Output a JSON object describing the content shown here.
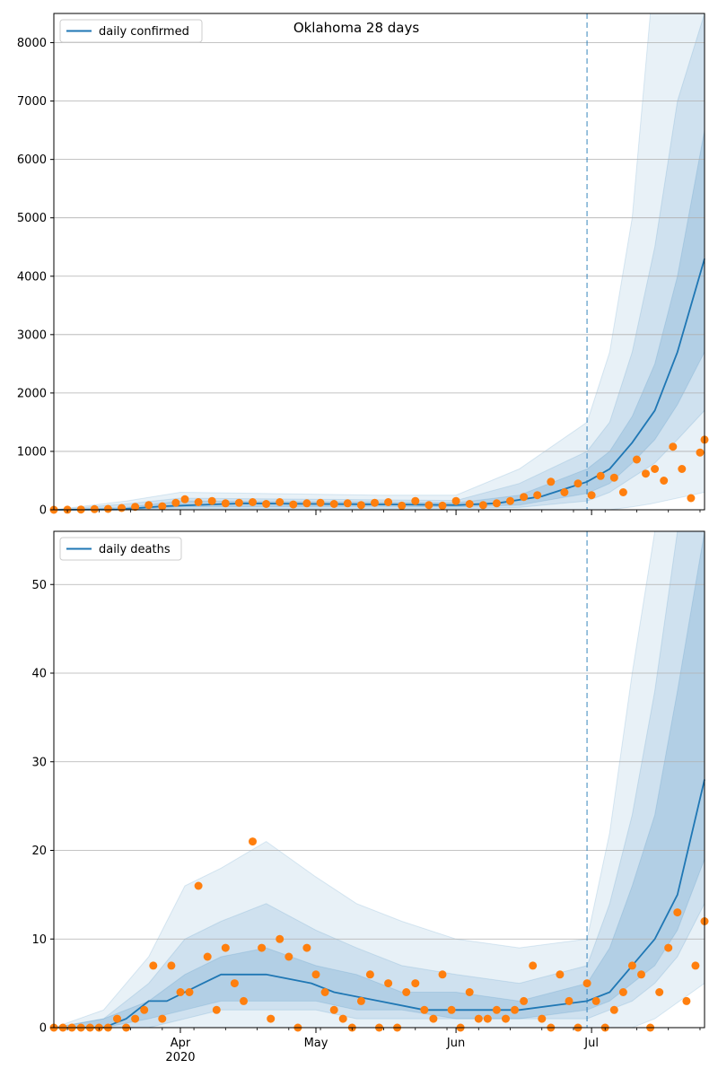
{
  "figure": {
    "title": "Oklahoma 28 days",
    "x_ticks": [
      "Apr",
      "May",
      "Jun",
      "Jul"
    ],
    "x_year_label": "2020"
  },
  "colors": {
    "line": "#1f77b4",
    "points": "#ff7f0e",
    "band": "#1f77b4",
    "grid": "#b0b0b0",
    "vline": "#1f77b4"
  },
  "chart_data": [
    {
      "type": "line",
      "legend": "daily confirmed",
      "legend_position": "top-left",
      "grid": "horizontal",
      "x_range": [
        "2020-03-04",
        "2020-07-26"
      ],
      "forecast_start": "2020-06-30",
      "ylim": [
        0,
        8500
      ],
      "yticks": [
        0,
        1000,
        2000,
        3000,
        4000,
        5000,
        6000,
        7000,
        8000
      ],
      "line": {
        "x": [
          "2020-03-04",
          "2020-03-18",
          "2020-03-28",
          "2020-04-15",
          "2020-05-01",
          "2020-05-20",
          "2020-06-01",
          "2020-06-10",
          "2020-06-20",
          "2020-06-30",
          "2020-07-05",
          "2020-07-10",
          "2020-07-15",
          "2020-07-20",
          "2020-07-26"
        ],
        "y": [
          0,
          5,
          60,
          110,
          100,
          90,
          80,
          110,
          230,
          480,
          700,
          1150,
          1700,
          2700,
          4300
        ]
      },
      "bands": [
        {
          "level": "outer",
          "x": [
            "2020-03-04",
            "2020-03-20",
            "2020-04-01",
            "2020-05-15",
            "2020-06-01",
            "2020-06-15",
            "2020-06-30",
            "2020-07-05",
            "2020-07-10",
            "2020-07-14",
            "2020-07-26"
          ],
          "low": [
            0,
            0,
            0,
            0,
            0,
            0,
            0,
            0,
            50,
            100,
            300
          ],
          "high": [
            0,
            150,
            300,
            250,
            250,
            700,
            1500,
            2700,
            5000,
            8500,
            8500
          ]
        },
        {
          "level": "middle",
          "x": [
            "2020-03-04",
            "2020-03-20",
            "2020-04-01",
            "2020-05-15",
            "2020-06-01",
            "2020-06-15",
            "2020-06-30",
            "2020-07-05",
            "2020-07-10",
            "2020-07-15",
            "2020-07-20",
            "2020-07-26"
          ],
          "low": [
            0,
            0,
            20,
            20,
            20,
            40,
            150,
            300,
            550,
            800,
            1200,
            1700
          ],
          "high": [
            0,
            100,
            200,
            170,
            160,
            450,
            1000,
            1500,
            2700,
            4500,
            7000,
            8500
          ]
        },
        {
          "level": "inner",
          "x": [
            "2020-03-04",
            "2020-03-20",
            "2020-04-01",
            "2020-05-15",
            "2020-06-01",
            "2020-06-15",
            "2020-06-30",
            "2020-07-05",
            "2020-07-10",
            "2020-07-15",
            "2020-07-20",
            "2020-07-26"
          ],
          "low": [
            0,
            0,
            50,
            60,
            50,
            80,
            280,
            450,
            800,
            1200,
            1800,
            2700
          ],
          "high": [
            0,
            40,
            150,
            130,
            120,
            250,
            700,
            1000,
            1600,
            2500,
            4000,
            6500
          ]
        }
      ],
      "points": {
        "x": [
          "2020-03-04",
          "2020-03-07",
          "2020-03-10",
          "2020-03-13",
          "2020-03-16",
          "2020-03-19",
          "2020-03-22",
          "2020-03-25",
          "2020-03-28",
          "2020-03-31",
          "2020-04-02",
          "2020-04-05",
          "2020-04-08",
          "2020-04-11",
          "2020-04-14",
          "2020-04-17",
          "2020-04-20",
          "2020-04-23",
          "2020-04-26",
          "2020-04-29",
          "2020-05-02",
          "2020-05-05",
          "2020-05-08",
          "2020-05-11",
          "2020-05-14",
          "2020-05-17",
          "2020-05-20",
          "2020-05-23",
          "2020-05-26",
          "2020-05-29",
          "2020-06-01",
          "2020-06-04",
          "2020-06-07",
          "2020-06-10",
          "2020-06-13",
          "2020-06-16",
          "2020-06-19",
          "2020-06-22",
          "2020-06-25",
          "2020-06-28",
          "2020-07-01",
          "2020-07-03",
          "2020-07-06",
          "2020-07-08",
          "2020-07-11",
          "2020-07-13",
          "2020-07-15",
          "2020-07-17",
          "2020-07-19",
          "2020-07-21",
          "2020-07-23",
          "2020-07-25",
          "2020-07-26"
        ],
        "y": [
          0,
          2,
          5,
          10,
          15,
          30,
          50,
          80,
          60,
          120,
          180,
          130,
          150,
          110,
          120,
          130,
          100,
          130,
          90,
          110,
          120,
          100,
          110,
          80,
          120,
          130,
          70,
          150,
          80,
          70,
          150,
          100,
          80,
          110,
          150,
          220,
          250,
          480,
          300,
          450,
          250,
          580,
          550,
          300,
          860,
          620,
          700,
          500,
          1080,
          700,
          200,
          980,
          1200
        ]
      }
    },
    {
      "type": "line",
      "legend": "daily deaths",
      "legend_position": "top-left",
      "grid": "horizontal",
      "x_range": [
        "2020-03-04",
        "2020-07-26"
      ],
      "forecast_start": "2020-06-30",
      "ylim": [
        0,
        56
      ],
      "yticks": [
        0,
        10,
        20,
        30,
        40,
        50
      ],
      "line": {
        "x": [
          "2020-03-04",
          "2020-03-15",
          "2020-03-20",
          "2020-03-25",
          "2020-03-29",
          "2020-04-02",
          "2020-04-06",
          "2020-04-10",
          "2020-04-20",
          "2020-04-30",
          "2020-05-05",
          "2020-05-15",
          "2020-05-25",
          "2020-06-01",
          "2020-06-15",
          "2020-06-30",
          "2020-07-05",
          "2020-07-10",
          "2020-07-15",
          "2020-07-20",
          "2020-07-26"
        ],
        "y": [
          0,
          0,
          1,
          3,
          3,
          4,
          5,
          6,
          6,
          5,
          4,
          3,
          2,
          2,
          2,
          3,
          4,
          7,
          10,
          15,
          28
        ]
      },
      "bands": [
        {
          "level": "outer",
          "x": [
            "2020-03-04",
            "2020-03-15",
            "2020-03-25",
            "2020-04-02",
            "2020-04-10",
            "2020-04-20",
            "2020-05-01",
            "2020-05-10",
            "2020-05-20",
            "2020-06-01",
            "2020-06-15",
            "2020-06-30",
            "2020-07-05",
            "2020-07-10",
            "2020-07-15",
            "2020-07-26"
          ],
          "low": [
            0,
            0,
            0,
            0,
            0,
            0,
            0,
            0,
            0,
            0,
            0,
            0,
            0,
            0,
            1,
            5
          ],
          "high": [
            0,
            2,
            8,
            16,
            18,
            21,
            17,
            14,
            12,
            10,
            9,
            10,
            22,
            40,
            56,
            56
          ]
        },
        {
          "level": "middle",
          "x": [
            "2020-03-04",
            "2020-03-15",
            "2020-03-25",
            "2020-04-02",
            "2020-04-10",
            "2020-04-20",
            "2020-05-01",
            "2020-05-10",
            "2020-05-20",
            "2020-06-01",
            "2020-06-15",
            "2020-06-30",
            "2020-07-05",
            "2020-07-10",
            "2020-07-15",
            "2020-07-20",
            "2020-07-26"
          ],
          "low": [
            0,
            0,
            0,
            1,
            2,
            2,
            2,
            1,
            1,
            1,
            1,
            1,
            2,
            3,
            5,
            8,
            14
          ],
          "high": [
            0,
            1,
            5,
            10,
            12,
            14,
            11,
            9,
            7,
            6,
            5,
            7,
            14,
            24,
            38,
            56,
            56
          ]
        },
        {
          "level": "inner",
          "x": [
            "2020-03-04",
            "2020-03-15",
            "2020-03-25",
            "2020-04-02",
            "2020-04-10",
            "2020-04-20",
            "2020-05-01",
            "2020-05-10",
            "2020-05-20",
            "2020-06-01",
            "2020-06-15",
            "2020-06-30",
            "2020-07-05",
            "2020-07-10",
            "2020-07-15",
            "2020-07-20",
            "2020-07-26"
          ],
          "low": [
            0,
            0,
            1,
            2,
            3,
            3,
            3,
            2,
            2,
            1,
            1,
            2,
            3,
            5,
            7,
            11,
            19
          ],
          "high": [
            0,
            1,
            3,
            6,
            8,
            9,
            7,
            6,
            4,
            4,
            3,
            5,
            9,
            16,
            24,
            38,
            56
          ]
        }
      ],
      "points": {
        "x": [
          "2020-03-04",
          "2020-03-06",
          "2020-03-08",
          "2020-03-10",
          "2020-03-12",
          "2020-03-14",
          "2020-03-16",
          "2020-03-18",
          "2020-03-20",
          "2020-03-22",
          "2020-03-24",
          "2020-03-26",
          "2020-03-28",
          "2020-03-30",
          "2020-04-01",
          "2020-04-03",
          "2020-04-05",
          "2020-04-07",
          "2020-04-09",
          "2020-04-11",
          "2020-04-13",
          "2020-04-15",
          "2020-04-17",
          "2020-04-19",
          "2020-04-21",
          "2020-04-23",
          "2020-04-25",
          "2020-04-27",
          "2020-04-29",
          "2020-05-01",
          "2020-05-03",
          "2020-05-05",
          "2020-05-07",
          "2020-05-09",
          "2020-05-11",
          "2020-05-13",
          "2020-05-15",
          "2020-05-17",
          "2020-05-19",
          "2020-05-21",
          "2020-05-23",
          "2020-05-25",
          "2020-05-27",
          "2020-05-29",
          "2020-05-31",
          "2020-06-02",
          "2020-06-04",
          "2020-06-06",
          "2020-06-08",
          "2020-06-10",
          "2020-06-12",
          "2020-06-14",
          "2020-06-16",
          "2020-06-18",
          "2020-06-20",
          "2020-06-22",
          "2020-06-24",
          "2020-06-26",
          "2020-06-28",
          "2020-06-30",
          "2020-07-02",
          "2020-07-04",
          "2020-07-06",
          "2020-07-08",
          "2020-07-10",
          "2020-07-12",
          "2020-07-14",
          "2020-07-16",
          "2020-07-18",
          "2020-07-20",
          "2020-07-22",
          "2020-07-24",
          "2020-07-26"
        ],
        "y": [
          0,
          0,
          0,
          0,
          0,
          0,
          0,
          1,
          0,
          1,
          2,
          7,
          1,
          7,
          4,
          4,
          16,
          8,
          2,
          9,
          5,
          3,
          21,
          9,
          1,
          10,
          8,
          0,
          9,
          6,
          4,
          2,
          1,
          0,
          3,
          6,
          0,
          5,
          0,
          4,
          5,
          2,
          1,
          6,
          2,
          0,
          4,
          1,
          1,
          2,
          1,
          2,
          3,
          7,
          1,
          0,
          6,
          3,
          0,
          5,
          3,
          0,
          2,
          4,
          7,
          6,
          0,
          4,
          9,
          13,
          3,
          7,
          12
        ]
      }
    }
  ]
}
